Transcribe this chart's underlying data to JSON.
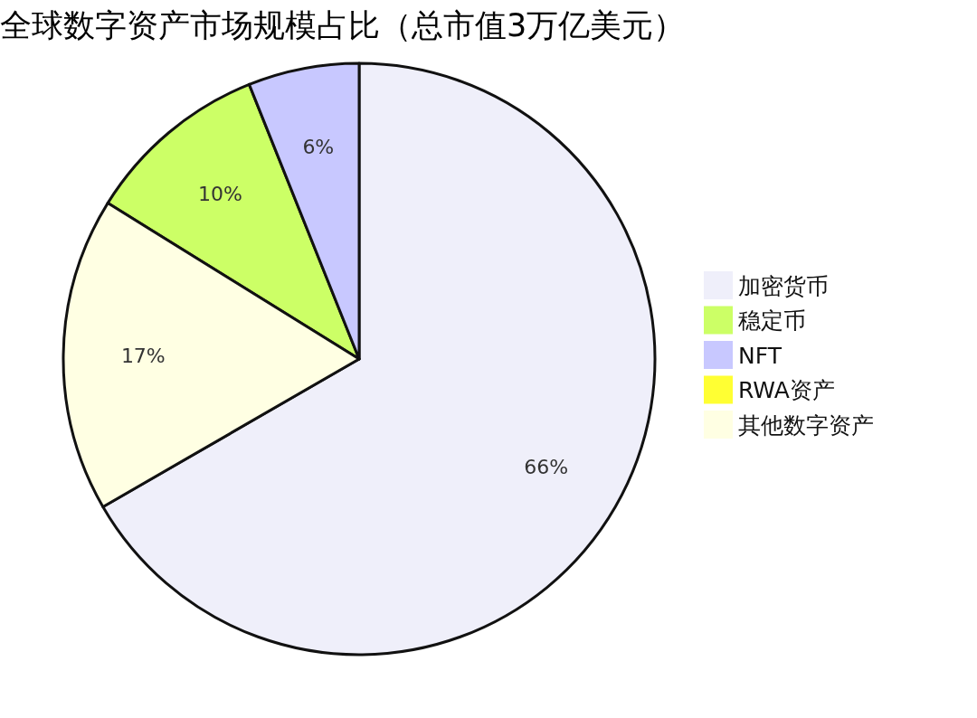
{
  "chart_data": {
    "type": "pie",
    "title": "全球数字资产市场规模占比（总市值3万亿美元）",
    "categories": [
      "加密货币",
      "稳定币",
      "NFT",
      "RWA资产",
      "其他数字资产"
    ],
    "values": [
      66,
      10,
      6,
      0,
      17
    ],
    "colors": [
      "#efeffa",
      "#ccff66",
      "#c8c8ff",
      "#ffff33",
      "#ffffe3"
    ],
    "value_labels": [
      "66%",
      "10%",
      "6%",
      null,
      "17%"
    ],
    "legend": "right"
  }
}
